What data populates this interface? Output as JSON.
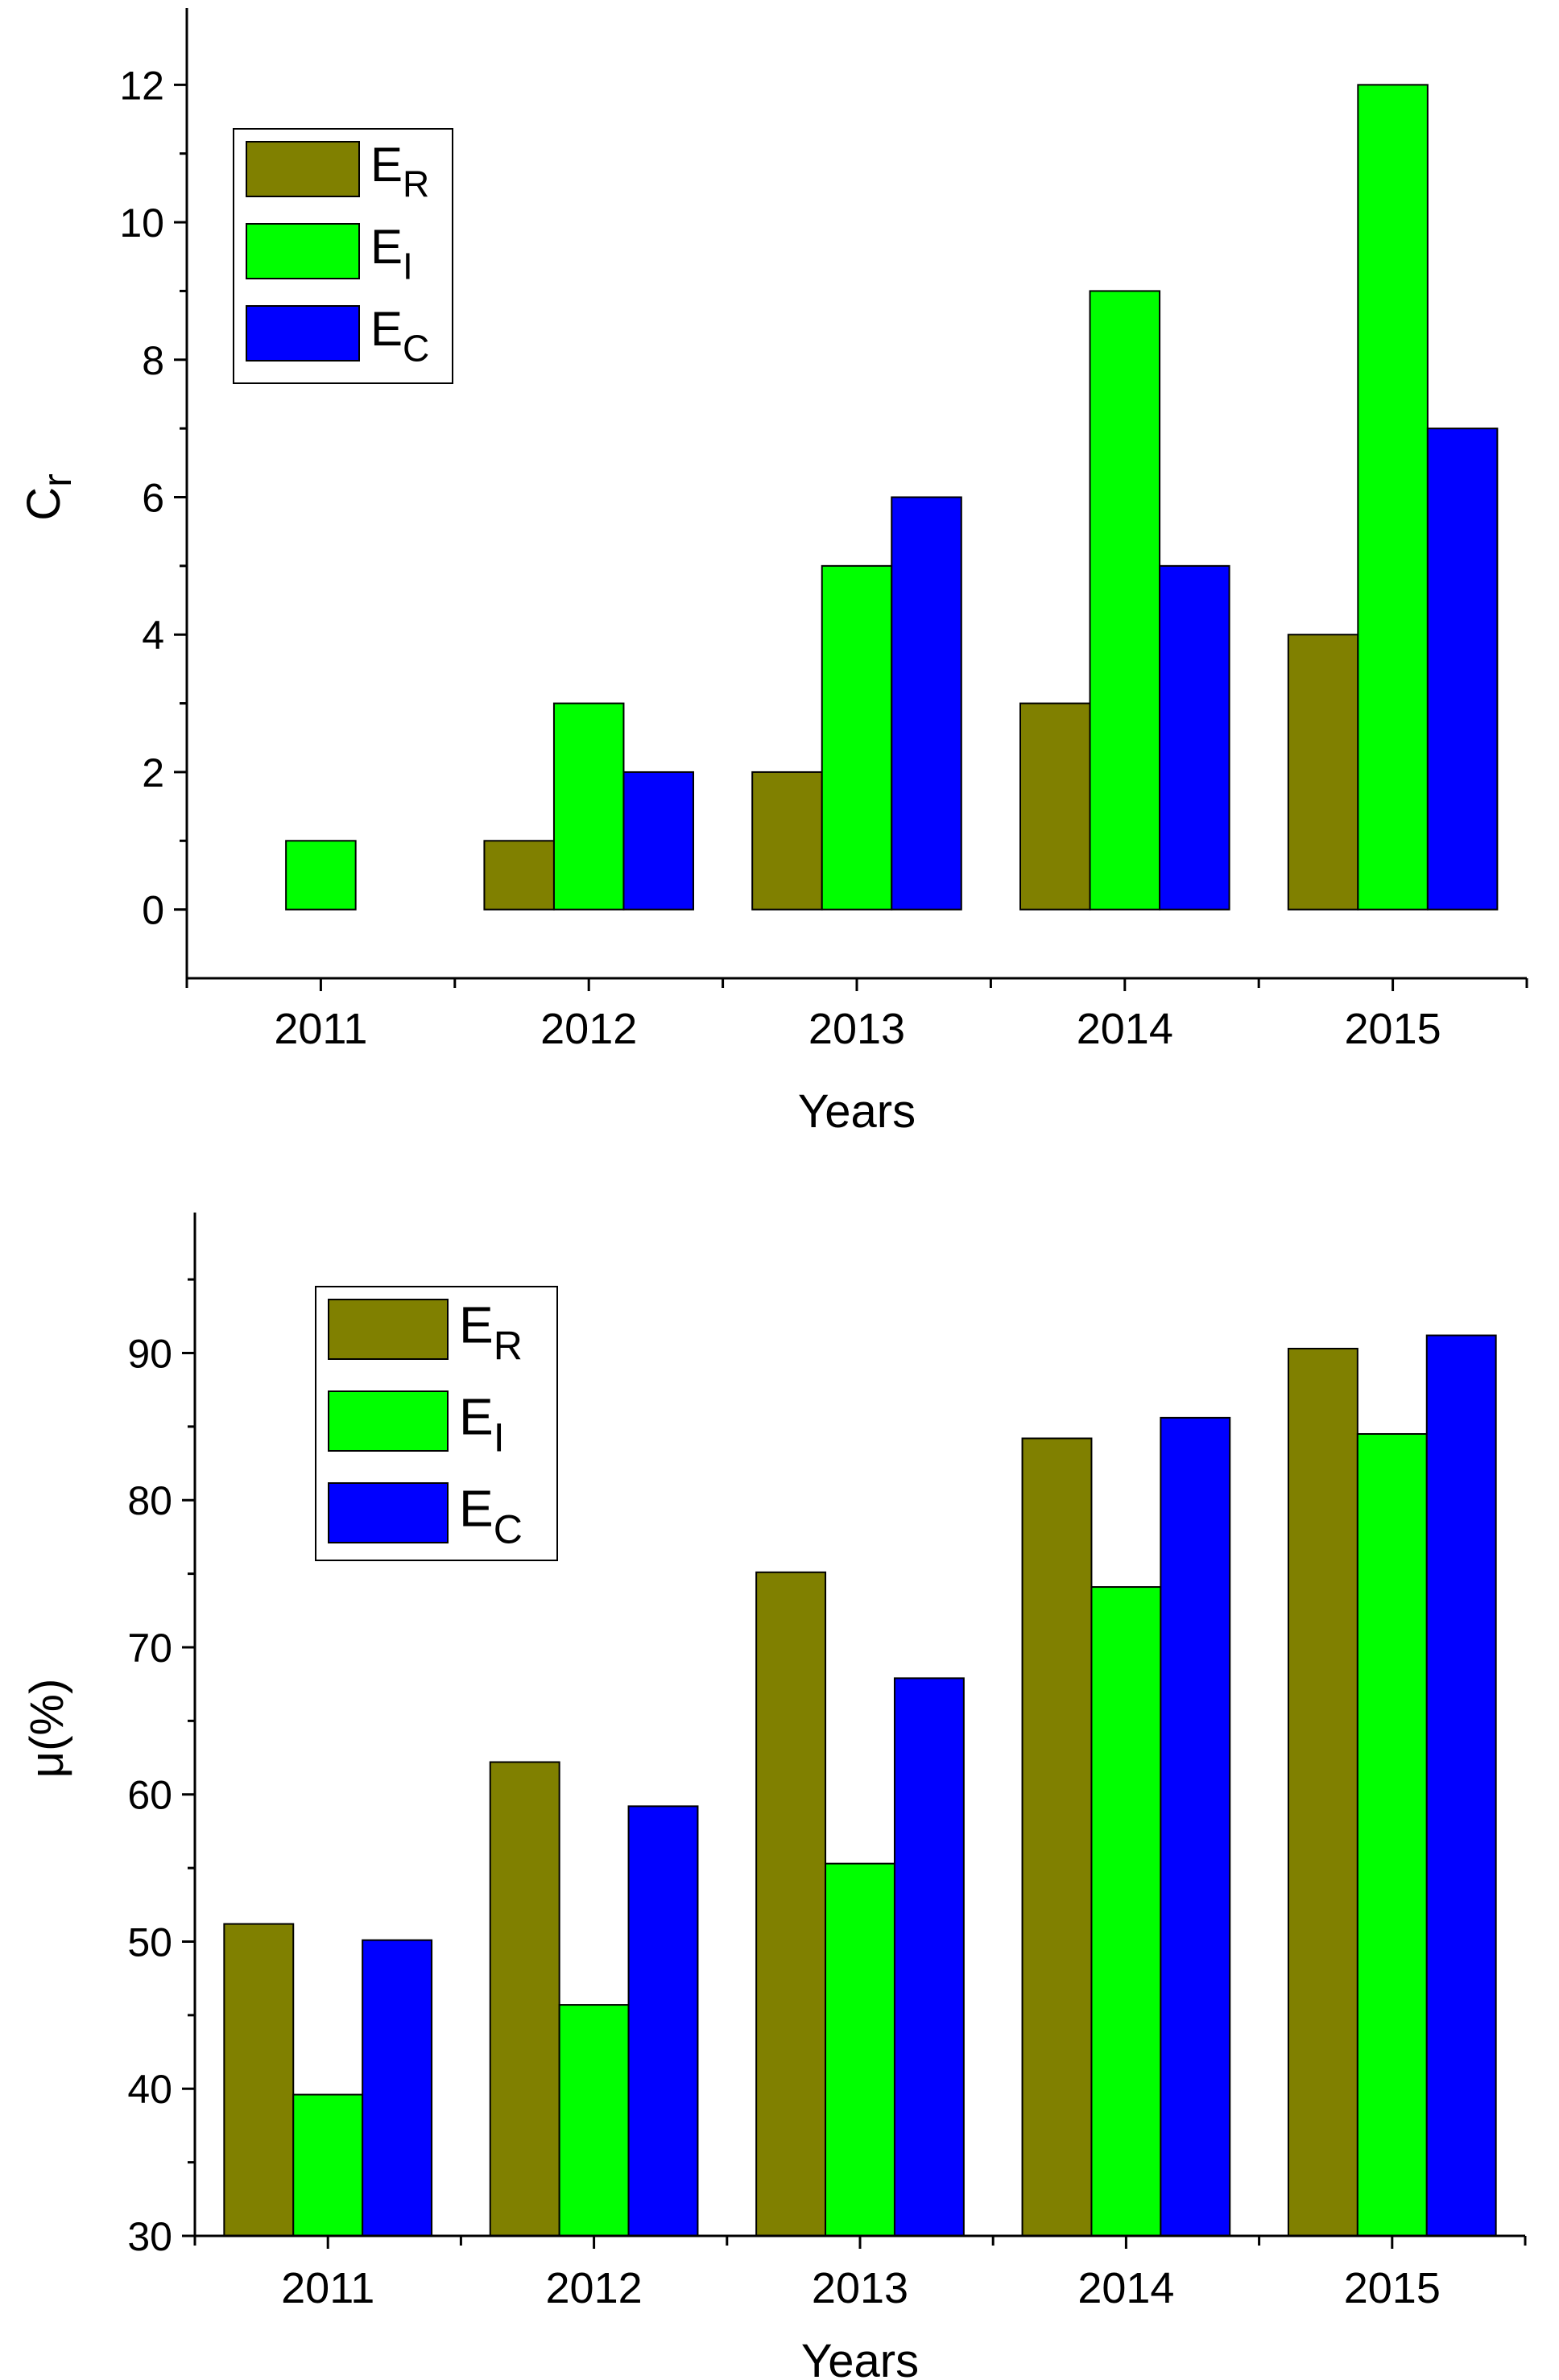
{
  "chart_data": [
    {
      "type": "bar",
      "title": "",
      "categories": [
        "2011",
        "2012",
        "2013",
        "2014",
        "2015"
      ],
      "series": [
        {
          "name": "E",
          "sub": "R",
          "color": "#808000",
          "values": [
            0,
            1,
            2,
            3,
            4
          ]
        },
        {
          "name": "E",
          "sub": "I",
          "color": "#00ff00",
          "values": [
            1,
            3,
            5,
            9,
            12
          ]
        },
        {
          "name": "E",
          "sub": "C",
          "color": "#0000ff",
          "values": [
            0,
            2,
            6,
            5,
            7
          ]
        }
      ],
      "xlabel": "Years",
      "ylabel": {
        "main": "C",
        "sub": "r"
      },
      "ylim": [
        -1,
        13
      ],
      "yticks": [
        0,
        2,
        4,
        6,
        8,
        10,
        12
      ],
      "ytick_labels": [
        "0",
        "2",
        "4",
        "6",
        "8",
        "10",
        "12"
      ],
      "legend": "top-left",
      "grid": false
    },
    {
      "type": "bar",
      "title": "",
      "categories": [
        "2011",
        "2012",
        "2013",
        "2014",
        "2015"
      ],
      "series": [
        {
          "name": "E",
          "sub": "R",
          "color": "#808000",
          "values": [
            51.2,
            62.2,
            75.1,
            84.2,
            90.3
          ]
        },
        {
          "name": "E",
          "sub": "I",
          "color": "#00ff00",
          "values": [
            39.6,
            45.7,
            55.3,
            74.1,
            84.5
          ]
        },
        {
          "name": "E",
          "sub": "C",
          "color": "#0000ff",
          "values": [
            50.1,
            59.2,
            67.9,
            85.6,
            91.2
          ]
        }
      ],
      "xlabel": "Years",
      "ylabel": {
        "main": "μ(%)",
        "sub": ""
      },
      "ylim": [
        30,
        99
      ],
      "yticks": [
        30,
        40,
        50,
        60,
        70,
        80,
        90
      ],
      "ytick_labels": [
        "30",
        "40",
        "50",
        "60",
        "70",
        "80",
        "90"
      ],
      "legend": "top-left",
      "grid": false
    }
  ]
}
